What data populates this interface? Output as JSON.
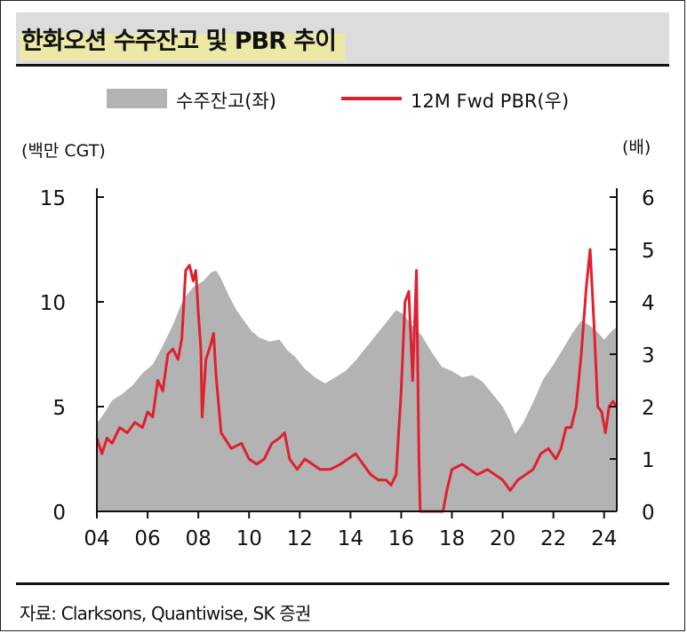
{
  "title": "한화오션 수주잔고 및 PBR 추이",
  "source": "자료: Clarksons, Quantiwise, SK 증권",
  "colors": {
    "area": "#b3b3b3",
    "line": "#e0202e",
    "title_bg": "#dcdcdc",
    "highlight": "#f4ef8a"
  },
  "chart_data": {
    "type": "area",
    "title": "한화오션 수주잔고 및 PBR 추이",
    "legend_position": "top",
    "y_left": {
      "unit": "(백만 CGT)",
      "min": 0,
      "max": 15,
      "ticks": [
        "0",
        "5",
        "10",
        "15"
      ]
    },
    "y_right": {
      "unit": "(배)",
      "min": 0,
      "max": 6,
      "ticks": [
        "0",
        "1",
        "2",
        "3",
        "4",
        "5",
        "6"
      ]
    },
    "x_axis": {
      "min": 2004,
      "max": 2024.5,
      "ticks": [
        "04",
        "06",
        "08",
        "10",
        "12",
        "14",
        "16",
        "18",
        "20",
        "22",
        "24"
      ],
      "tick_values": [
        2004,
        2006,
        2008,
        2010,
        2012,
        2014,
        2016,
        2018,
        2020,
        2022,
        2024
      ]
    },
    "series": [
      {
        "name": "수주잔고(좌)",
        "kind": "area",
        "axis": "left",
        "points": [
          [
            2004.0,
            4.2
          ],
          [
            2004.3,
            4.7
          ],
          [
            2004.6,
            5.3
          ],
          [
            2005.0,
            5.6
          ],
          [
            2005.4,
            6.0
          ],
          [
            2005.8,
            6.6
          ],
          [
            2006.2,
            7.0
          ],
          [
            2006.6,
            7.9
          ],
          [
            2007.0,
            8.9
          ],
          [
            2007.4,
            10.1
          ],
          [
            2007.8,
            10.7
          ],
          [
            2008.2,
            11.0
          ],
          [
            2008.5,
            11.4
          ],
          [
            2008.7,
            11.5
          ],
          [
            2008.9,
            11.1
          ],
          [
            2009.2,
            10.3
          ],
          [
            2009.5,
            9.6
          ],
          [
            2009.8,
            9.1
          ],
          [
            2010.1,
            8.6
          ],
          [
            2010.4,
            8.3
          ],
          [
            2010.8,
            8.1
          ],
          [
            2011.2,
            8.2
          ],
          [
            2011.5,
            7.7
          ],
          [
            2011.8,
            7.4
          ],
          [
            2012.2,
            6.8
          ],
          [
            2012.6,
            6.4
          ],
          [
            2013.0,
            6.1
          ],
          [
            2013.4,
            6.4
          ],
          [
            2013.8,
            6.7
          ],
          [
            2014.2,
            7.2
          ],
          [
            2014.6,
            7.8
          ],
          [
            2015.0,
            8.4
          ],
          [
            2015.4,
            9.0
          ],
          [
            2015.8,
            9.6
          ],
          [
            2016.1,
            9.4
          ],
          [
            2016.4,
            8.9
          ],
          [
            2016.8,
            8.4
          ],
          [
            2017.2,
            7.6
          ],
          [
            2017.6,
            6.9
          ],
          [
            2018.0,
            6.7
          ],
          [
            2018.4,
            6.4
          ],
          [
            2018.8,
            6.5
          ],
          [
            2019.2,
            6.2
          ],
          [
            2019.6,
            5.6
          ],
          [
            2020.0,
            5.0
          ],
          [
            2020.3,
            4.3
          ],
          [
            2020.5,
            3.7
          ],
          [
            2020.8,
            4.2
          ],
          [
            2021.2,
            5.2
          ],
          [
            2021.6,
            6.3
          ],
          [
            2022.0,
            7.0
          ],
          [
            2022.4,
            7.8
          ],
          [
            2022.8,
            8.6
          ],
          [
            2023.1,
            9.1
          ],
          [
            2023.4,
            8.9
          ],
          [
            2023.7,
            8.6
          ],
          [
            2024.0,
            8.2
          ],
          [
            2024.3,
            8.6
          ],
          [
            2024.5,
            8.8
          ]
        ]
      },
      {
        "name": "12M Fwd PBR(우)",
        "kind": "line",
        "axis": "right",
        "points": [
          [
            2004.0,
            1.4
          ],
          [
            2004.2,
            1.1
          ],
          [
            2004.4,
            1.4
          ],
          [
            2004.6,
            1.3
          ],
          [
            2004.9,
            1.6
          ],
          [
            2005.2,
            1.5
          ],
          [
            2005.5,
            1.7
          ],
          [
            2005.8,
            1.6
          ],
          [
            2006.0,
            1.9
          ],
          [
            2006.2,
            1.8
          ],
          [
            2006.4,
            2.5
          ],
          [
            2006.6,
            2.3
          ],
          [
            2006.8,
            3.0
          ],
          [
            2007.0,
            3.1
          ],
          [
            2007.2,
            2.9
          ],
          [
            2007.35,
            3.3
          ],
          [
            2007.5,
            4.6
          ],
          [
            2007.65,
            4.7
          ],
          [
            2007.8,
            4.4
          ],
          [
            2007.9,
            4.6
          ],
          [
            2008.0,
            3.8
          ],
          [
            2008.1,
            3.1
          ],
          [
            2008.15,
            1.8
          ],
          [
            2008.3,
            2.9
          ],
          [
            2008.5,
            3.2
          ],
          [
            2008.6,
            3.4
          ],
          [
            2008.7,
            2.6
          ],
          [
            2008.9,
            1.5
          ],
          [
            2009.3,
            1.2
          ],
          [
            2009.7,
            1.3
          ],
          [
            2010.0,
            1.0
          ],
          [
            2010.3,
            0.9
          ],
          [
            2010.6,
            1.0
          ],
          [
            2010.9,
            1.3
          ],
          [
            2011.2,
            1.4
          ],
          [
            2011.4,
            1.5
          ],
          [
            2011.6,
            1.0
          ],
          [
            2011.9,
            0.8
          ],
          [
            2012.2,
            1.0
          ],
          [
            2012.5,
            0.9
          ],
          [
            2012.8,
            0.8
          ],
          [
            2013.2,
            0.8
          ],
          [
            2013.6,
            0.9
          ],
          [
            2013.9,
            1.0
          ],
          [
            2014.2,
            1.1
          ],
          [
            2014.5,
            0.9
          ],
          [
            2014.8,
            0.7
          ],
          [
            2015.1,
            0.6
          ],
          [
            2015.4,
            0.6
          ],
          [
            2015.6,
            0.5
          ],
          [
            2015.8,
            0.7
          ],
          [
            2016.0,
            2.3
          ],
          [
            2016.15,
            4.0
          ],
          [
            2016.3,
            4.2
          ],
          [
            2016.45,
            2.5
          ],
          [
            2016.6,
            4.6
          ],
          [
            2016.7,
            1.0
          ],
          [
            2016.75,
            0.0
          ],
          [
            2017.0,
            0.0
          ],
          [
            2017.3,
            0.0
          ],
          [
            2017.5,
            0.0
          ],
          [
            2017.65,
            0.0
          ],
          [
            2017.8,
            0.4
          ],
          [
            2018.0,
            0.8
          ],
          [
            2018.4,
            0.9
          ],
          [
            2018.7,
            0.8
          ],
          [
            2019.0,
            0.7
          ],
          [
            2019.4,
            0.8
          ],
          [
            2019.7,
            0.7
          ],
          [
            2020.0,
            0.6
          ],
          [
            2020.3,
            0.4
          ],
          [
            2020.6,
            0.6
          ],
          [
            2020.9,
            0.7
          ],
          [
            2021.2,
            0.8
          ],
          [
            2021.5,
            1.1
          ],
          [
            2021.8,
            1.2
          ],
          [
            2022.1,
            1.0
          ],
          [
            2022.3,
            1.2
          ],
          [
            2022.5,
            1.6
          ],
          [
            2022.7,
            1.6
          ],
          [
            2022.9,
            2.0
          ],
          [
            2023.1,
            3.0
          ],
          [
            2023.3,
            4.3
          ],
          [
            2023.45,
            5.0
          ],
          [
            2023.6,
            3.6
          ],
          [
            2023.75,
            2.0
          ],
          [
            2023.9,
            1.9
          ],
          [
            2024.05,
            1.5
          ],
          [
            2024.2,
            2.0
          ],
          [
            2024.35,
            2.1
          ],
          [
            2024.5,
            2.0
          ]
        ]
      }
    ]
  }
}
